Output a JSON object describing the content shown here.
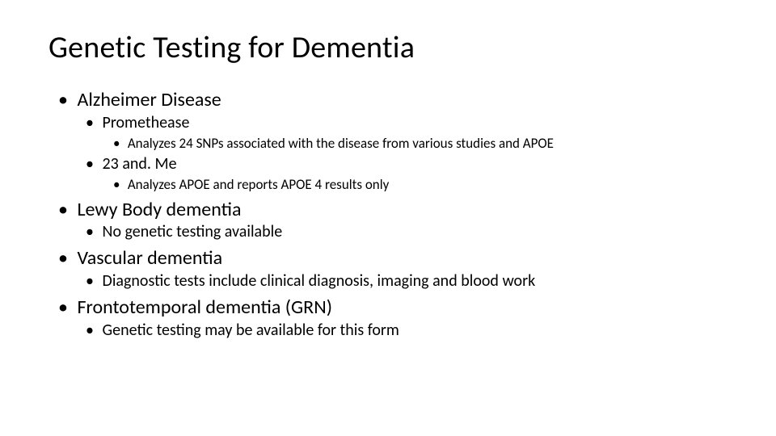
{
  "slide": {
    "title": "Genetic Testing for Dementia",
    "background_color": "#ffffff",
    "text_color": "#000000",
    "title_fontsize": 38,
    "l1_fontsize": 24,
    "l2_fontsize": 20,
    "l3_fontsize": 17,
    "items": [
      {
        "text": "Alzheimer Disease",
        "children": [
          {
            "text": "Promethease",
            "children": [
              {
                "text": "Analyzes 24 SNPs associated with the disease from various studies and APOE"
              }
            ]
          },
          {
            "text": "23 and. Me",
            "children": [
              {
                "text": "Analyzes APOE and reports APOE 4 results only"
              }
            ]
          }
        ]
      },
      {
        "text": "Lewy Body dementia",
        "children": [
          {
            "text": "No genetic testing available"
          }
        ]
      },
      {
        "text": "Vascular dementia",
        "children": [
          {
            "text": "Diagnostic tests include clinical diagnosis, imaging and blood work"
          }
        ]
      },
      {
        "text": "Frontotemporal dementia (GRN)",
        "children": [
          {
            "text": "Genetic testing may be available for this form"
          }
        ]
      }
    ]
  }
}
